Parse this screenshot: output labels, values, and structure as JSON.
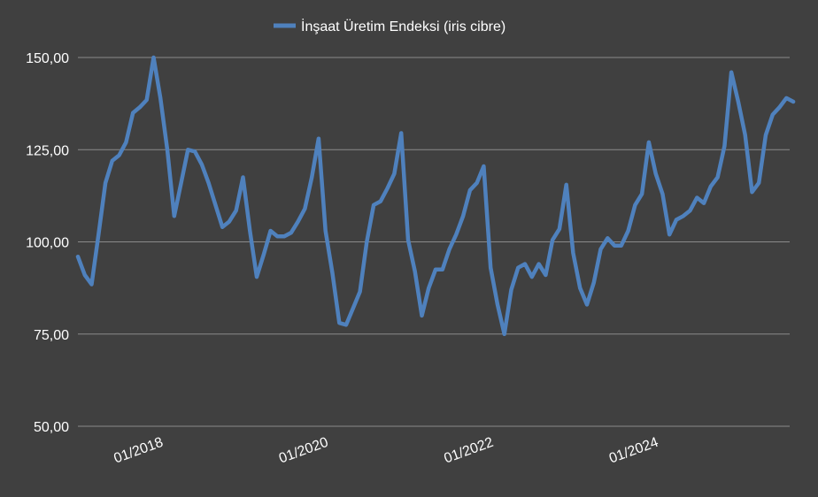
{
  "chart_data": {
    "type": "line",
    "title": "",
    "xlabel": "",
    "ylabel": "",
    "legend_position": "top-center",
    "grid": "horizontal",
    "ylim": [
      50,
      150
    ],
    "y_ticks": [
      "50,00",
      "75,00",
      "100,00",
      "125,00",
      "150,00"
    ],
    "x_ticks": [
      {
        "label": "01/2018",
        "index": 12
      },
      {
        "label": "01/2020",
        "index": 36
      },
      {
        "label": "01/2022",
        "index": 60
      },
      {
        "label": "01/2024",
        "index": 84
      }
    ],
    "series": [
      {
        "name": "İnşaat Üretim Endeksi (iris cibre)",
        "color": "#4f81bd",
        "start": "01/2017",
        "values": [
          96,
          91,
          88.5,
          102,
          116,
          122,
          123.5,
          127,
          135,
          136.5,
          138.5,
          150,
          139,
          125,
          107,
          116,
          125,
          124.5,
          121,
          116,
          110,
          104,
          105.5,
          108.5,
          117.5,
          103,
          90.5,
          96.5,
          103,
          101.5,
          101.5,
          102.5,
          105.5,
          109,
          117.5,
          128,
          103,
          91.5,
          78,
          77.5,
          82,
          86.5,
          100,
          110,
          111,
          114.5,
          118.5,
          129.5,
          100.5,
          92,
          80,
          87.5,
          92.5,
          92.5,
          98,
          102,
          107,
          114,
          116,
          120.5,
          93,
          83,
          75,
          87,
          93,
          94,
          90.5,
          94,
          91,
          100.5,
          103.5,
          115.5,
          97,
          87.5,
          83,
          89,
          98,
          101,
          99,
          99,
          103,
          110,
          113,
          127,
          118.5,
          113,
          102,
          106,
          107,
          108.5,
          112,
          110.5,
          115,
          117.5,
          126,
          146,
          138,
          129,
          113.5,
          116,
          129,
          134.5,
          136.5,
          139,
          138
        ]
      }
    ]
  }
}
